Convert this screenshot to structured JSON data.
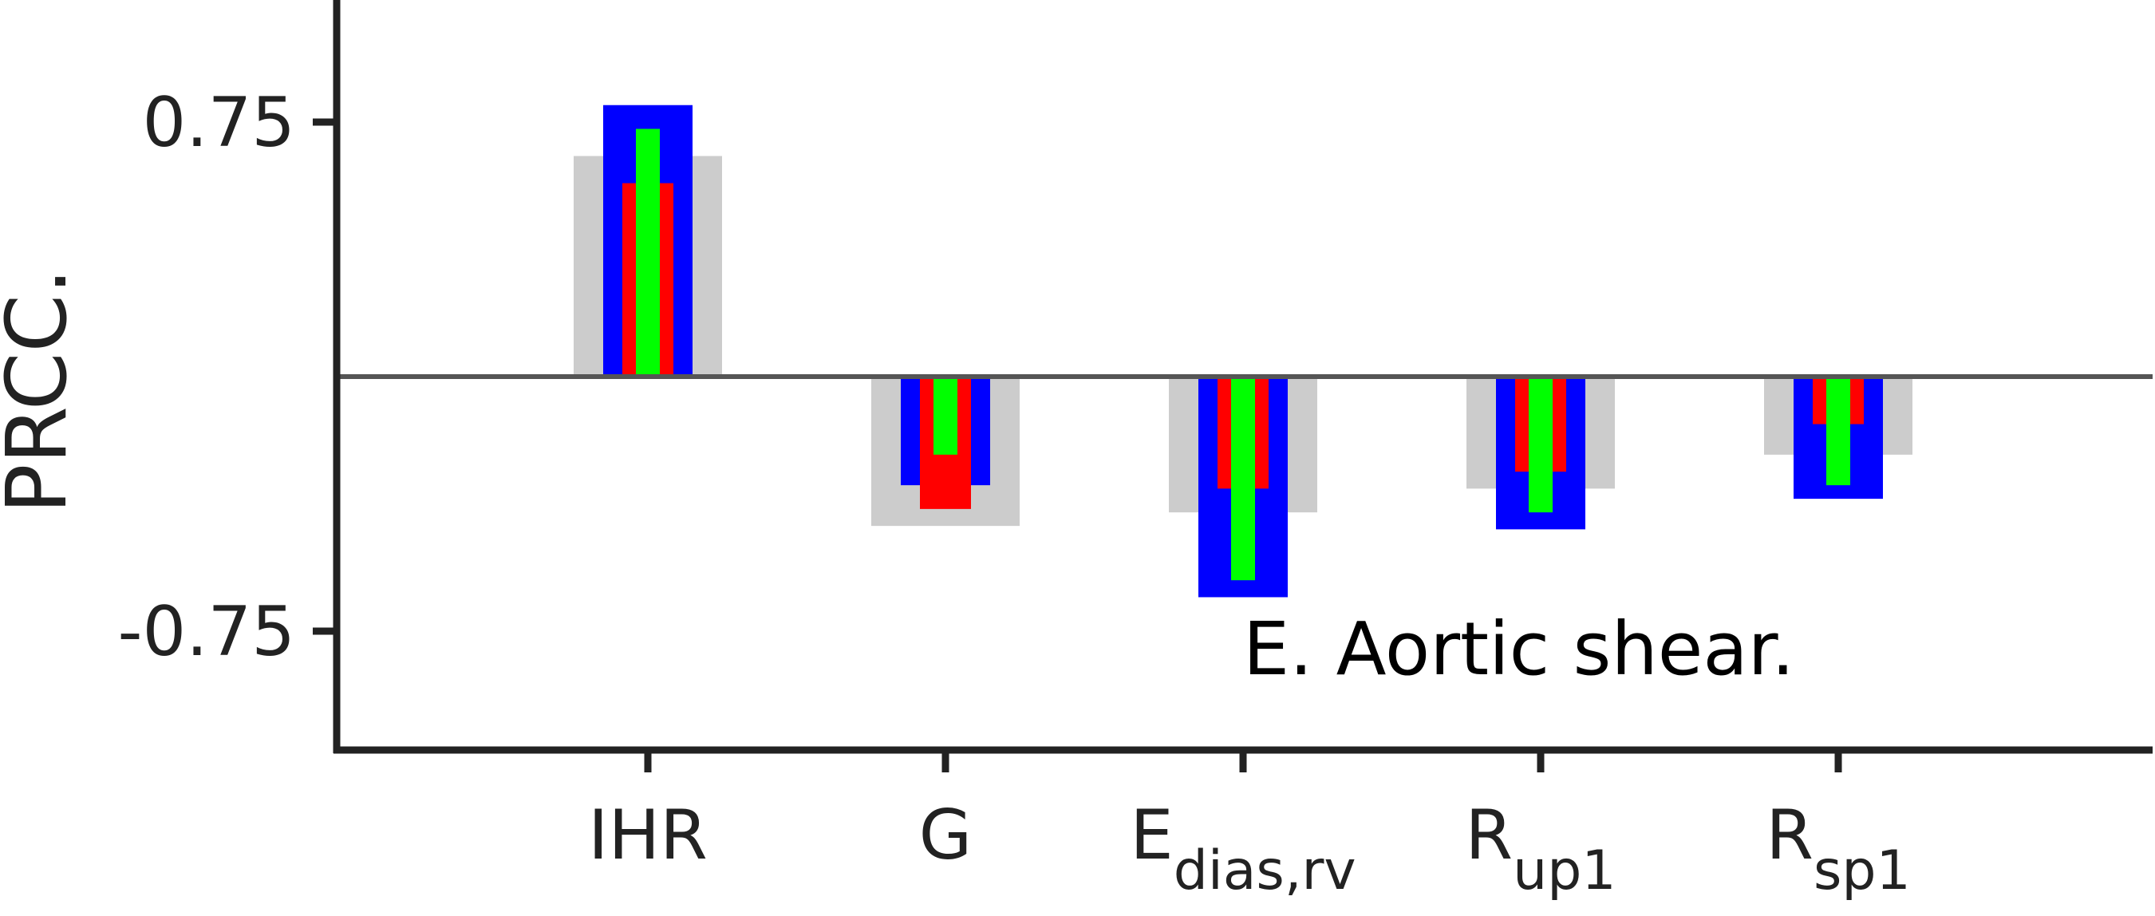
{
  "chart_data": {
    "type": "bar",
    "title": "",
    "ylabel": "PRCC.",
    "xlabel": "",
    "ylim": [
      -1.1,
      1.1
    ],
    "yticks": [
      0.75,
      -0.75
    ],
    "ytick_labels": [
      "0.75",
      "-0.75"
    ],
    "annotation": "E. Aortic shear.",
    "categories": [
      {
        "main": "IHR",
        "sub": ""
      },
      {
        "main": "G",
        "sub": ""
      },
      {
        "main": "E",
        "sub": "dias,rv"
      },
      {
        "main": "R",
        "sub": "up1"
      },
      {
        "main": "R",
        "sub": "sp1"
      }
    ],
    "series": [
      {
        "color": "#cccccc",
        "values": [
          0.65,
          -0.44,
          -0.4,
          -0.33,
          -0.23
        ]
      },
      {
        "color": "#0000ff",
        "values": [
          0.8,
          -0.32,
          -0.65,
          -0.45,
          -0.36
        ]
      },
      {
        "color": "#ff0000",
        "values": [
          0.57,
          -0.39,
          -0.33,
          -0.28,
          -0.14
        ]
      },
      {
        "color": "#00ff00",
        "values": [
          0.73,
          -0.23,
          -0.6,
          -0.4,
          -0.32
        ]
      }
    ],
    "grid": false,
    "zero_line": true
  }
}
